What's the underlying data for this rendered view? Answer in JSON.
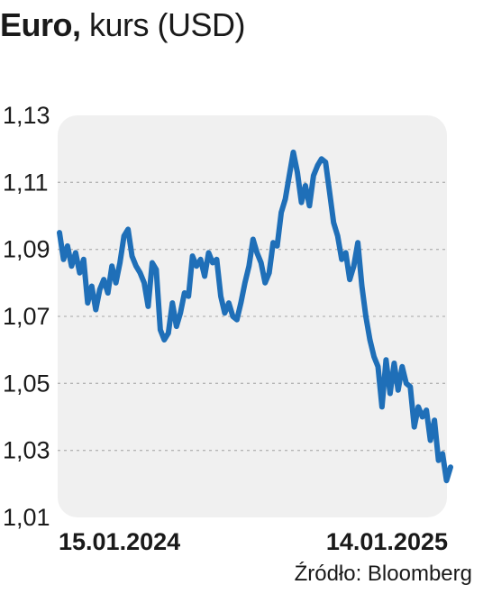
{
  "title": {
    "bold": "Euro,",
    "light": "kurs (USD)"
  },
  "source": "Źródło: Bloomberg",
  "colors": {
    "line": "#1f6fb8",
    "plot_background": "#f0f0f0",
    "grid": "#b5b5b5"
  },
  "chart_data": {
    "type": "line",
    "title": "Euro, kurs (USD)",
    "xlabel": "",
    "ylabel": "",
    "x_start": "15.01.2024",
    "x_end": "14.01.2025",
    "xtick_labels": [
      "15.01.2024",
      "14.01.2025"
    ],
    "ylim": [
      1.01,
      1.13
    ],
    "yticks": [
      1.01,
      1.03,
      1.05,
      1.07,
      1.09,
      1.11,
      1.13
    ],
    "ytick_labels": [
      "1,01",
      "1,03",
      "1,05",
      "1,07",
      "1,09",
      "1,11",
      "1,13"
    ],
    "grid": "horizontal dashed",
    "series": [
      {
        "values": [
          1.095,
          1.087,
          1.091,
          1.085,
          1.089,
          1.083,
          1.087,
          1.074,
          1.079,
          1.072,
          1.078,
          1.081,
          1.077,
          1.085,
          1.08,
          1.086,
          1.094,
          1.096,
          1.088,
          1.085,
          1.083,
          1.08,
          1.073,
          1.086,
          1.084,
          1.066,
          1.063,
          1.065,
          1.074,
          1.067,
          1.071,
          1.077,
          1.076,
          1.088,
          1.085,
          1.087,
          1.082,
          1.089,
          1.086,
          1.087,
          1.076,
          1.071,
          1.074,
          1.07,
          1.069,
          1.074,
          1.08,
          1.085,
          1.093,
          1.089,
          1.086,
          1.08,
          1.083,
          1.092,
          1.091,
          1.101,
          1.105,
          1.112,
          1.119,
          1.113,
          1.104,
          1.109,
          1.103,
          1.112,
          1.115,
          1.117,
          1.116,
          1.107,
          1.098,
          1.094,
          1.087,
          1.089,
          1.081,
          1.085,
          1.092,
          1.079,
          1.07,
          1.063,
          1.058,
          1.055,
          1.043,
          1.057,
          1.047,
          1.056,
          1.048,
          1.055,
          1.05,
          1.049,
          1.037,
          1.043,
          1.04,
          1.042,
          1.033,
          1.039,
          1.027,
          1.029,
          1.021,
          1.025
        ]
      }
    ]
  }
}
